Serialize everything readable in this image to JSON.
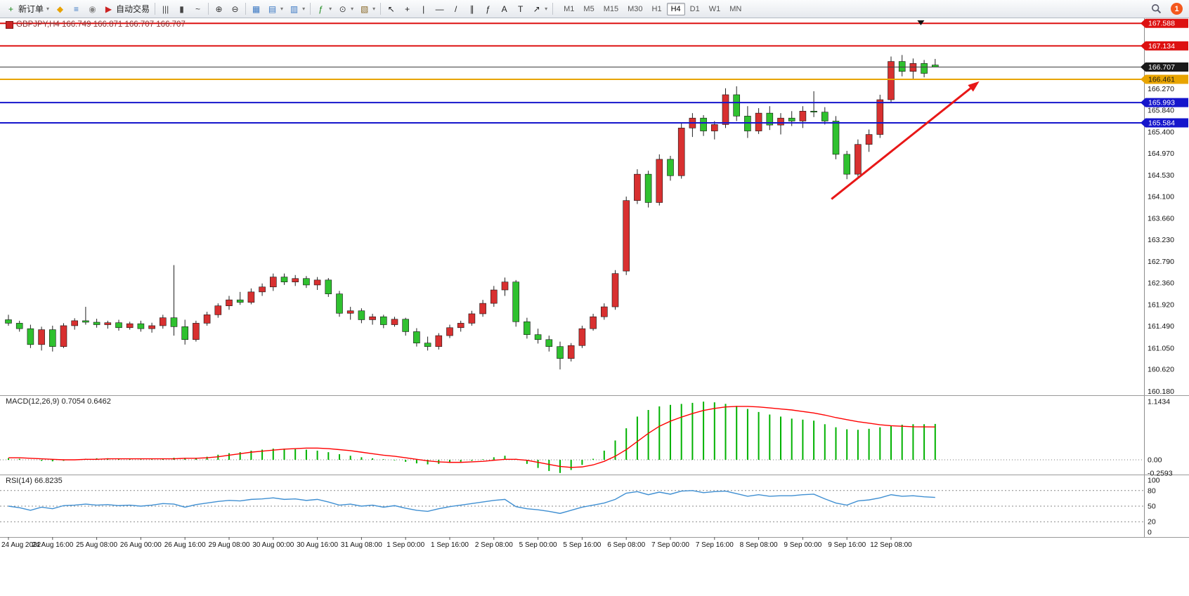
{
  "toolbar": {
    "items": [
      {
        "name": "new-order-button",
        "glyph": "+",
        "color": "#1d8a1d",
        "label": "新订单",
        "caret": true
      },
      {
        "name": "mql5-community-button",
        "glyph": "◆",
        "color": "#e8a200"
      },
      {
        "name": "data-window-button",
        "glyph": "≡",
        "color": "#3a77c2"
      },
      {
        "name": "refresh-button",
        "glyph": "◉",
        "color": "#888888"
      },
      {
        "name": "autotrading-button",
        "glyph": "▶",
        "color": "#cc2222",
        "label": "自动交易"
      },
      {
        "sep": true
      },
      {
        "name": "bar-chart-mode-button",
        "glyph": "|||",
        "color": "#444444"
      },
      {
        "name": "candlestick-mode-button",
        "glyph": "▮",
        "color": "#444444"
      },
      {
        "name": "line-chart-mode-button",
        "glyph": "~",
        "color": "#444444"
      },
      {
        "sep": true
      },
      {
        "name": "zoom-in-button",
        "glyph": "⊕",
        "color": "#333333"
      },
      {
        "name": "zoom-out-button",
        "glyph": "⊖",
        "color": "#333333"
      },
      {
        "sep": true
      },
      {
        "name": "tile-windows-button",
        "glyph": "▦",
        "color": "#3a77c2"
      },
      {
        "name": "new-chart-button",
        "glyph": "▤",
        "color": "#3a77c2",
        "caret": true
      },
      {
        "name": "profiles-button",
        "glyph": "▥",
        "color": "#3a77c2",
        "caret": true
      },
      {
        "sep": true
      },
      {
        "name": "indicators-button",
        "glyph": "ƒ",
        "color": "#1d8a1d",
        "caret": true
      },
      {
        "name": "periods-button",
        "glyph": "⊙",
        "color": "#444444",
        "caret": true
      },
      {
        "name": "templates-button",
        "glyph": "▧",
        "color": "#8a6a2a",
        "caret": true
      },
      {
        "sep": true
      },
      {
        "name": "cursor-button",
        "glyph": "↖",
        "color": "#222222"
      },
      {
        "name": "crosshair-button",
        "glyph": "+",
        "color": "#222222"
      },
      {
        "name": "vertical-line-button",
        "glyph": "|",
        "color": "#222222"
      },
      {
        "name": "horizontal-line-button",
        "glyph": "—",
        "color": "#222222"
      },
      {
        "name": "trendline-button",
        "glyph": "/",
        "color": "#222222"
      },
      {
        "name": "channel-button",
        "glyph": "∥",
        "color": "#222222"
      },
      {
        "name": "fibonacci-button",
        "glyph": "ƒ",
        "color": "#222222"
      },
      {
        "name": "text-button",
        "glyph": "A",
        "color": "#222222"
      },
      {
        "name": "text-label-button",
        "glyph": "T",
        "color": "#222222"
      },
      {
        "name": "arrows-button",
        "glyph": "↗",
        "color": "#222222",
        "caret": true
      },
      {
        "sep": true
      }
    ],
    "timeframes": [
      "M1",
      "M5",
      "M15",
      "M30",
      "H1",
      "H4",
      "D1",
      "W1",
      "MN"
    ],
    "active_timeframe": "H4",
    "right": {
      "badge_count": "1"
    }
  },
  "chart": {
    "title_text": "GBPJPY,H4  166.749 166.871 166.707 166.707",
    "indicators": {
      "macd_text": "MACD(12,26,9) 0.7054 0.6462",
      "rsi_text": "RSI(14) 66.8235"
    }
  },
  "chart_data": [
    {
      "name": "price",
      "type": "candlestick",
      "symbol": "GBPJPY",
      "period": "H4",
      "ohlc_display": {
        "open": "166.749",
        "high": "166.871",
        "low": "166.707",
        "close": "166.707"
      },
      "colors": {
        "up": "#d83030",
        "down": "#2fc12f",
        "wick": "#222222"
      },
      "ylim": [
        160.1,
        167.69
      ],
      "y_ticks": [
        166.27,
        165.84,
        165.4,
        164.97,
        164.53,
        164.1,
        163.66,
        163.23,
        162.79,
        162.36,
        161.92,
        161.49,
        161.05,
        160.62,
        160.18
      ],
      "level_lines": [
        {
          "price": 167.588,
          "color": "#dd1111",
          "width": 2
        },
        {
          "price": 167.134,
          "color": "#dd1111",
          "width": 2
        },
        {
          "price": 166.707,
          "color": "#3c3c3c",
          "width": 1,
          "badge_color": "#1a1a1a"
        },
        {
          "price": 166.461,
          "color": "#e8a400",
          "width": 2,
          "text_color": "#1a1a1a"
        },
        {
          "price": 165.993,
          "color": "#1616cc",
          "width": 2
        },
        {
          "price": 165.584,
          "color": "#1616cc",
          "width": 2
        }
      ],
      "x_labels": [
        "24 Aug 2022",
        "24 Aug 16:00",
        "25 Aug 08:00",
        "26 Aug 00:00",
        "26 Aug 16:00",
        "29 Aug 08:00",
        "30 Aug 00:00",
        "30 Aug 16:00",
        "31 Aug 08:00",
        "1 Sep 00:00",
        "1 Sep 16:00",
        "2 Sep 08:00",
        "5 Sep 00:00",
        "5 Sep 16:00",
        "6 Sep 08:00",
        "7 Sep 00:00",
        "7 Sep 16:00",
        "8 Sep 08:00",
        "9 Sep 00:00",
        "9 Sep 16:00",
        "12 Sep 08:00"
      ],
      "x_label_step": 4,
      "candles": [
        [
          161.62,
          161.72,
          161.5,
          161.55
        ],
        [
          161.55,
          161.6,
          161.38,
          161.44
        ],
        [
          161.44,
          161.52,
          161.05,
          161.12
        ],
        [
          161.12,
          161.48,
          161.0,
          161.42
        ],
        [
          161.42,
          161.5,
          160.98,
          161.08
        ],
        [
          161.08,
          161.55,
          161.05,
          161.5
        ],
        [
          161.5,
          161.65,
          161.42,
          161.6
        ],
        [
          161.6,
          161.88,
          161.52,
          161.57
        ],
        [
          161.57,
          161.64,
          161.46,
          161.52
        ],
        [
          161.52,
          161.6,
          161.44,
          161.56
        ],
        [
          161.56,
          161.62,
          161.4,
          161.46
        ],
        [
          161.46,
          161.58,
          161.42,
          161.54
        ],
        [
          161.54,
          161.6,
          161.38,
          161.44
        ],
        [
          161.44,
          161.56,
          161.36,
          161.5
        ],
        [
          161.5,
          161.72,
          161.44,
          161.66
        ],
        [
          161.66,
          162.72,
          161.3,
          161.48
        ],
        [
          161.48,
          161.62,
          161.12,
          161.22
        ],
        [
          161.22,
          161.6,
          161.18,
          161.55
        ],
        [
          161.55,
          161.78,
          161.5,
          161.72
        ],
        [
          161.72,
          161.95,
          161.66,
          161.9
        ],
        [
          161.9,
          162.1,
          161.82,
          162.02
        ],
        [
          162.02,
          162.18,
          161.92,
          161.97
        ],
        [
          161.97,
          162.25,
          161.93,
          162.18
        ],
        [
          162.18,
          162.35,
          162.1,
          162.28
        ],
        [
          162.28,
          162.55,
          162.2,
          162.48
        ],
        [
          162.48,
          162.55,
          162.32,
          162.38
        ],
        [
          162.38,
          162.52,
          162.3,
          162.45
        ],
        [
          162.45,
          162.5,
          162.26,
          162.32
        ],
        [
          162.32,
          162.48,
          162.22,
          162.42
        ],
        [
          162.42,
          162.46,
          162.08,
          162.14
        ],
        [
          162.14,
          162.2,
          161.68,
          161.75
        ],
        [
          161.75,
          161.88,
          161.62,
          161.8
        ],
        [
          161.8,
          161.85,
          161.55,
          161.62
        ],
        [
          161.62,
          161.74,
          161.52,
          161.68
        ],
        [
          161.68,
          161.72,
          161.45,
          161.52
        ],
        [
          161.52,
          161.68,
          161.48,
          161.63
        ],
        [
          161.63,
          161.66,
          161.3,
          161.38
        ],
        [
          161.38,
          161.45,
          161.08,
          161.15
        ],
        [
          161.15,
          161.28,
          161.0,
          161.08
        ],
        [
          161.08,
          161.35,
          161.02,
          161.3
        ],
        [
          161.3,
          161.52,
          161.25,
          161.46
        ],
        [
          161.46,
          161.6,
          161.38,
          161.55
        ],
        [
          161.55,
          161.8,
          161.5,
          161.74
        ],
        [
          161.74,
          162.02,
          161.68,
          161.95
        ],
        [
          161.95,
          162.3,
          161.88,
          162.22
        ],
        [
          162.22,
          162.47,
          162.1,
          162.38
        ],
        [
          162.38,
          162.42,
          161.48,
          161.58
        ],
        [
          161.58,
          161.66,
          161.24,
          161.32
        ],
        [
          161.32,
          161.44,
          161.14,
          161.22
        ],
        [
          161.22,
          161.3,
          160.98,
          161.08
        ],
        [
          161.08,
          161.18,
          160.62,
          160.84
        ],
        [
          160.84,
          161.15,
          160.78,
          161.1
        ],
        [
          161.1,
          161.5,
          161.05,
          161.44
        ],
        [
          161.44,
          161.74,
          161.4,
          161.68
        ],
        [
          161.68,
          161.95,
          161.62,
          161.88
        ],
        [
          161.88,
          162.62,
          161.82,
          162.55
        ],
        [
          162.6,
          164.1,
          162.52,
          164.02
        ],
        [
          164.02,
          164.65,
          163.95,
          164.55
        ],
        [
          164.55,
          164.62,
          163.88,
          163.98
        ],
        [
          163.98,
          164.95,
          163.92,
          164.85
        ],
        [
          164.85,
          164.92,
          164.42,
          164.52
        ],
        [
          164.52,
          165.58,
          164.46,
          165.48
        ],
        [
          165.48,
          165.78,
          165.3,
          165.68
        ],
        [
          165.68,
          165.74,
          165.32,
          165.42
        ],
        [
          165.42,
          165.62,
          165.25,
          165.55
        ],
        [
          165.55,
          166.28,
          165.48,
          166.15
        ],
        [
          166.15,
          166.32,
          165.62,
          165.72
        ],
        [
          165.72,
          165.92,
          165.28,
          165.42
        ],
        [
          165.42,
          165.88,
          165.36,
          165.78
        ],
        [
          165.78,
          165.92,
          165.44,
          165.54
        ],
        [
          165.54,
          165.78,
          165.35,
          165.68
        ],
        [
          165.68,
          165.82,
          165.52,
          165.62
        ],
        [
          165.62,
          165.92,
          165.48,
          165.82
        ],
        [
          165.82,
          166.22,
          165.7,
          165.8
        ],
        [
          165.8,
          165.9,
          165.55,
          165.62
        ],
        [
          165.62,
          165.72,
          164.85,
          164.95
        ],
        [
          164.95,
          165.02,
          164.45,
          164.55
        ],
        [
          164.55,
          165.25,
          164.5,
          165.15
        ],
        [
          165.15,
          165.45,
          165.0,
          165.35
        ],
        [
          165.35,
          166.15,
          165.28,
          166.05
        ],
        [
          166.05,
          166.92,
          165.98,
          166.82
        ],
        [
          166.82,
          166.95,
          166.52,
          166.62
        ],
        [
          166.62,
          166.88,
          166.45,
          166.78
        ],
        [
          166.78,
          166.85,
          166.5,
          166.58
        ],
        [
          166.749,
          166.871,
          166.707,
          166.707
        ]
      ],
      "annotations": {
        "trend_arrow": {
          "from": {
            "i": 74.6,
            "price": 164.05
          },
          "to": {
            "i": 88.0,
            "price": 166.42
          },
          "color": "#e81717"
        },
        "shift_marker": {
          "i": 82.7
        }
      }
    },
    {
      "name": "macd",
      "type": "bar",
      "label": "MACD(12,26,9)",
      "value": "0.7054",
      "signal_value": "0.6462",
      "colors": {
        "histogram": "#00b200",
        "signal": "#ff0000"
      },
      "ylim": [
        -0.29,
        1.27
      ],
      "y_ticks": [
        {
          "v": 1.1434,
          "label": "1.1434"
        },
        {
          "v": 0,
          "label": "0.00"
        },
        {
          "v": -0.2593,
          "label": "-0.2593"
        }
      ],
      "histogram": [
        0.03,
        0.02,
        0.0,
        -0.02,
        -0.03,
        -0.02,
        0.0,
        0.02,
        0.03,
        0.03,
        0.02,
        0.02,
        0.01,
        0.01,
        0.02,
        0.04,
        0.03,
        0.03,
        0.06,
        0.1,
        0.13,
        0.15,
        0.18,
        0.2,
        0.22,
        0.22,
        0.21,
        0.2,
        0.18,
        0.15,
        0.11,
        0.08,
        0.05,
        0.03,
        0.01,
        -0.01,
        -0.04,
        -0.07,
        -0.09,
        -0.08,
        -0.06,
        -0.04,
        -0.02,
        0.01,
        0.05,
        0.08,
        0.02,
        -0.08,
        -0.16,
        -0.22,
        -0.2593,
        -0.2,
        -0.1,
        0.02,
        0.18,
        0.38,
        0.62,
        0.85,
        0.98,
        1.05,
        1.08,
        1.1,
        1.12,
        1.1434,
        1.13,
        1.1,
        1.06,
        1.0,
        0.94,
        0.89,
        0.85,
        0.81,
        0.79,
        0.77,
        0.7,
        0.64,
        0.6,
        0.59,
        0.61,
        0.64,
        0.67,
        0.69,
        0.7,
        0.7,
        0.7054
      ],
      "signal": [
        0.04,
        0.04,
        0.03,
        0.02,
        0.01,
        0.0,
        0.0,
        0.01,
        0.01,
        0.02,
        0.02,
        0.02,
        0.02,
        0.02,
        0.02,
        0.02,
        0.03,
        0.03,
        0.04,
        0.06,
        0.09,
        0.12,
        0.15,
        0.17,
        0.19,
        0.21,
        0.22,
        0.23,
        0.23,
        0.22,
        0.2,
        0.18,
        0.15,
        0.12,
        0.09,
        0.07,
        0.04,
        0.01,
        -0.02,
        -0.04,
        -0.05,
        -0.05,
        -0.04,
        -0.03,
        -0.01,
        0.01,
        0.01,
        -0.01,
        -0.05,
        -0.09,
        -0.13,
        -0.15,
        -0.14,
        -0.1,
        -0.03,
        0.07,
        0.2,
        0.36,
        0.52,
        0.66,
        0.76,
        0.84,
        0.91,
        0.97,
        1.01,
        1.04,
        1.05,
        1.05,
        1.04,
        1.02,
        1.0,
        0.98,
        0.95,
        0.92,
        0.88,
        0.83,
        0.79,
        0.75,
        0.72,
        0.69,
        0.67,
        0.66,
        0.65,
        0.648,
        0.6462
      ]
    },
    {
      "name": "rsi",
      "type": "line",
      "label": "RSI(14)",
      "value": "66.8235",
      "colors": {
        "line": "#3f8fd2"
      },
      "ylim": [
        0,
        100
      ],
      "levels": [
        80,
        50,
        20
      ],
      "y_ticks": [
        {
          "v": 100,
          "label": "100"
        },
        {
          "v": 80,
          "label": "80"
        },
        {
          "v": 50,
          "label": "50"
        },
        {
          "v": 20,
          "label": "20"
        },
        {
          "v": 0,
          "label": "0"
        }
      ],
      "values": [
        50,
        47,
        42,
        48,
        45,
        51,
        52,
        54,
        52,
        53,
        51,
        52,
        50,
        52,
        55,
        54,
        48,
        53,
        56,
        59,
        61,
        60,
        63,
        64,
        66,
        63,
        64,
        61,
        63,
        58,
        52,
        54,
        50,
        52,
        48,
        51,
        46,
        42,
        40,
        45,
        49,
        52,
        55,
        58,
        61,
        63,
        49,
        45,
        43,
        40,
        36,
        42,
        48,
        52,
        56,
        63,
        75,
        78,
        72,
        77,
        73,
        79,
        80,
        76,
        78,
        79,
        74,
        69,
        72,
        69,
        70,
        70,
        72,
        73,
        64,
        56,
        52,
        60,
        62,
        66,
        72,
        69,
        70,
        68,
        66.8235
      ]
    }
  ]
}
